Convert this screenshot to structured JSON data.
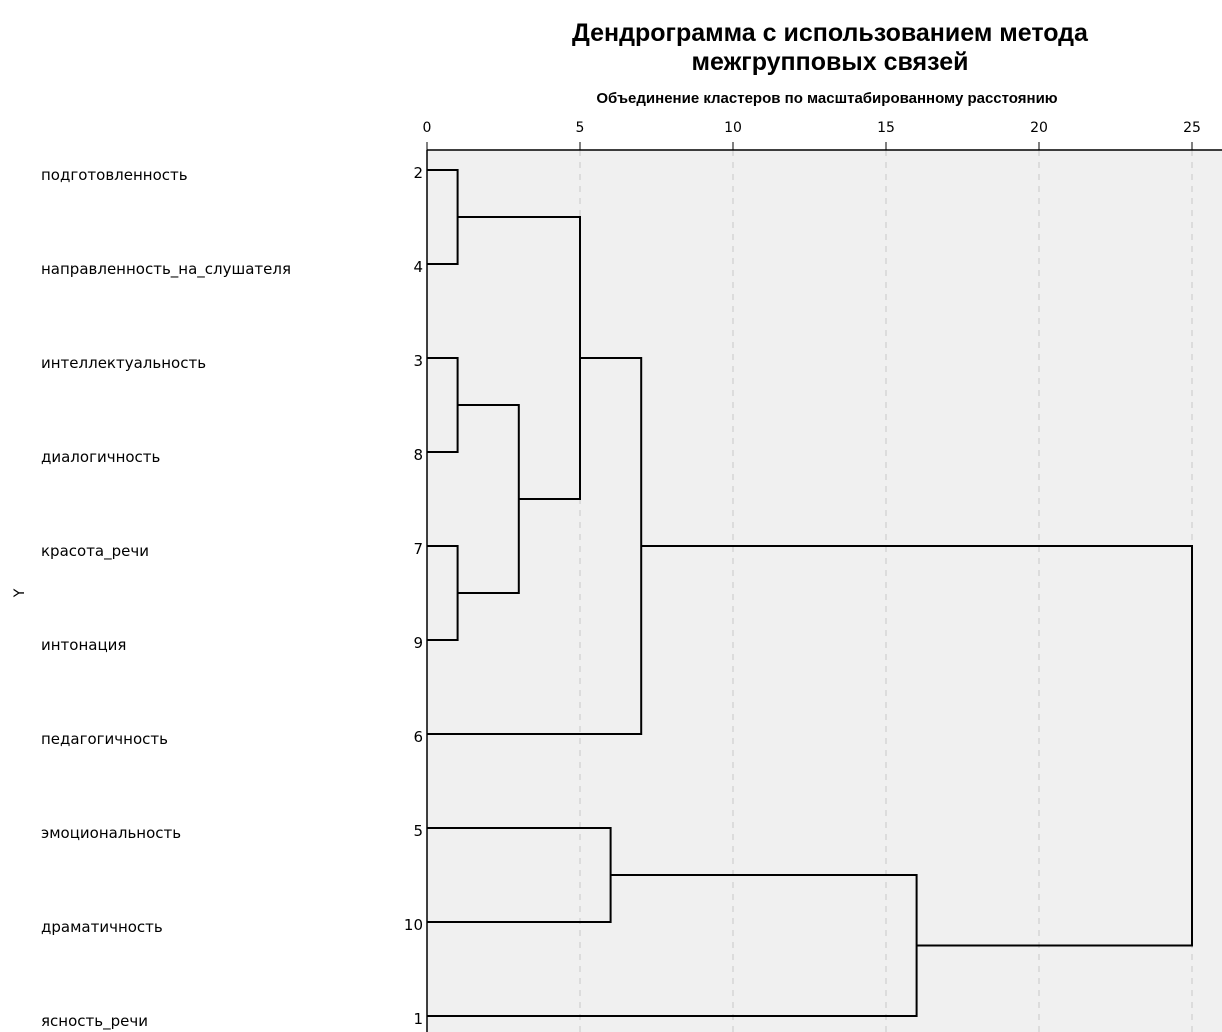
{
  "chart_data": {
    "type": "dendrogram",
    "title_line1": "Дендрограмма с использованием метода",
    "title_line2": "межгрупповых связей",
    "subtitle": "Объединение кластеров по масштабированному расстоянию",
    "ylabel": "Y",
    "xlim": [
      0,
      25
    ],
    "xticks": [
      "0",
      "5",
      "10",
      "15",
      "20",
      "25"
    ],
    "grid": true,
    "leaves": [
      {
        "name": "подготовленность",
        "case": "2"
      },
      {
        "name": "направленность_на_слушателя",
        "case": "4"
      },
      {
        "name": "интеллектуальность",
        "case": "3"
      },
      {
        "name": "диалогичность",
        "case": "8"
      },
      {
        "name": "красота_речи",
        "case": "7"
      },
      {
        "name": "интонация",
        "case": "9"
      },
      {
        "name": "педагогичность",
        "case": "6"
      },
      {
        "name": "эмоциональность",
        "case": "5"
      },
      {
        "name": "драматичность",
        "case": "10"
      },
      {
        "name": "ясность_речи",
        "case": "1"
      }
    ],
    "merges": [
      {
        "left": "2",
        "right": "4",
        "distance": 1
      },
      {
        "left": "3",
        "right": "8",
        "distance": 1
      },
      {
        "left": "7",
        "right": "9",
        "distance": 1
      },
      {
        "left": "3+8",
        "right": "7+9",
        "distance": 3
      },
      {
        "left": "2+4",
        "right": "3+8+7+9",
        "distance": 5
      },
      {
        "left": "5",
        "right": "10",
        "distance": 6
      },
      {
        "left": "2+4+3+8+7+9",
        "right": "6",
        "distance": 7
      },
      {
        "left": "5+10",
        "right": "1",
        "distance": 16
      },
      {
        "left": "2+4+3+8+7+9+6",
        "right": "5+10+1",
        "distance": 25
      }
    ]
  }
}
